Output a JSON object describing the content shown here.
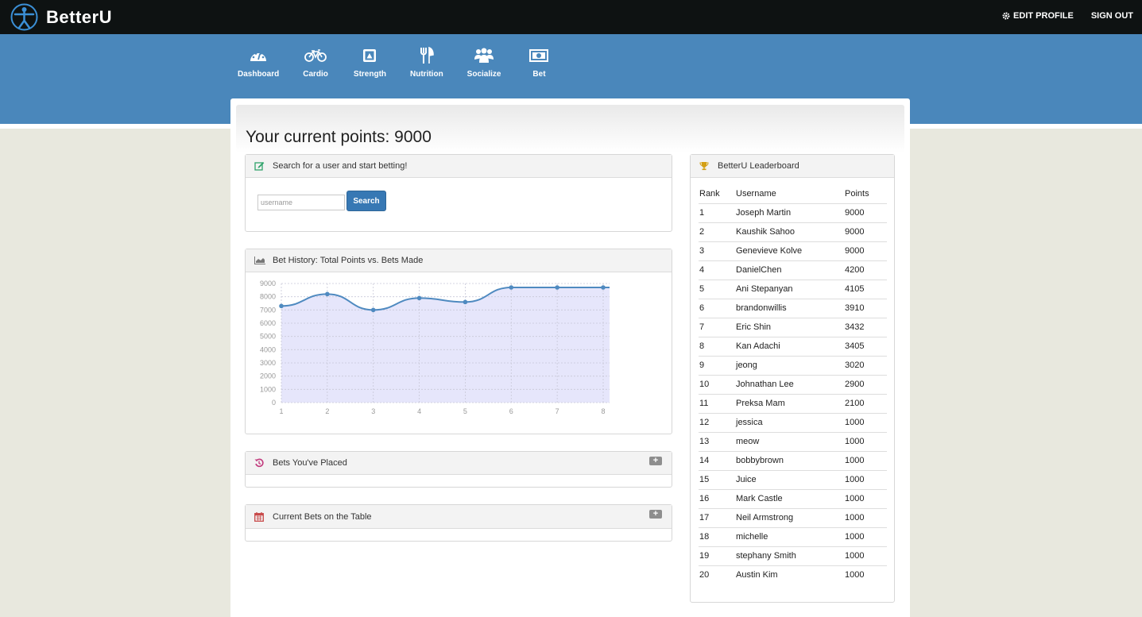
{
  "app": {
    "logo_text": "BetterU",
    "edit_profile": "EDIT PROFILE",
    "sign_out": "SIGN OUT"
  },
  "nav": [
    {
      "label": "Dashboard",
      "icon": "dashboard-icon"
    },
    {
      "label": "Cardio",
      "icon": "bicycle-icon"
    },
    {
      "label": "Strength",
      "icon": "strength-icon"
    },
    {
      "label": "Nutrition",
      "icon": "cutlery-icon"
    },
    {
      "label": "Socialize",
      "icon": "users-icon"
    },
    {
      "label": "Bet",
      "icon": "money-icon"
    }
  ],
  "page": {
    "title": "Your current points: 9000"
  },
  "search_panel": {
    "title": "Search for a user and start betting!",
    "placeholder": "username",
    "button": "Search"
  },
  "history_panel": {
    "title": "Bet History: Total Points vs. Bets Made"
  },
  "placed_panel": {
    "title": "Bets You've Placed"
  },
  "current_panel": {
    "title": "Current Bets on the Table"
  },
  "leaderboard": {
    "title": "BetterU Leaderboard",
    "headers": [
      "Rank",
      "Username",
      "Points"
    ],
    "rows": [
      [
        "1",
        "Joseph Martin",
        "9000"
      ],
      [
        "2",
        "Kaushik Sahoo",
        "9000"
      ],
      [
        "3",
        "Genevieve Kolve",
        "9000"
      ],
      [
        "4",
        "DanielChen",
        "4200"
      ],
      [
        "5",
        "Ani Stepanyan",
        "4105"
      ],
      [
        "6",
        "brandonwillis",
        "3910"
      ],
      [
        "7",
        "Eric Shin",
        "3432"
      ],
      [
        "8",
        "Kan Adachi",
        "3405"
      ],
      [
        "9",
        "jeong",
        "3020"
      ],
      [
        "10",
        "Johnathan Lee",
        "2900"
      ],
      [
        "11",
        "Preksa Mam",
        "2100"
      ],
      [
        "12",
        "jessica",
        "1000"
      ],
      [
        "13",
        "meow",
        "1000"
      ],
      [
        "14",
        "bobbybrown",
        "1000"
      ],
      [
        "15",
        "Juice",
        "1000"
      ],
      [
        "16",
        "Mark Castle",
        "1000"
      ],
      [
        "17",
        "Neil Armstrong",
        "1000"
      ],
      [
        "18",
        "michelle",
        "1000"
      ],
      [
        "19",
        "stephany Smith",
        "1000"
      ],
      [
        "20",
        "Austin Kim",
        "1000"
      ]
    ]
  },
  "colors": {
    "topbar": "#0e1212",
    "nav_band": "#4a87bb",
    "search_button": "#3778b4",
    "line": "#4f8ac0",
    "area_fill": "#e6e6fb",
    "trophy": "#d4a015",
    "history_icon": "#c23b7e",
    "calendar_icon": "#c84a4a",
    "edit_icon": "#2fa36b"
  },
  "chart_data": {
    "type": "area",
    "x": [
      1,
      2,
      3,
      4,
      5,
      6,
      7,
      8
    ],
    "values": [
      7300,
      8200,
      7000,
      7900,
      7600,
      8700,
      8700,
      8700
    ],
    "ylim": [
      0,
      9000
    ],
    "yticks": [
      0,
      1000,
      2000,
      3000,
      4000,
      5000,
      6000,
      7000,
      8000,
      9000
    ],
    "grid": true
  }
}
